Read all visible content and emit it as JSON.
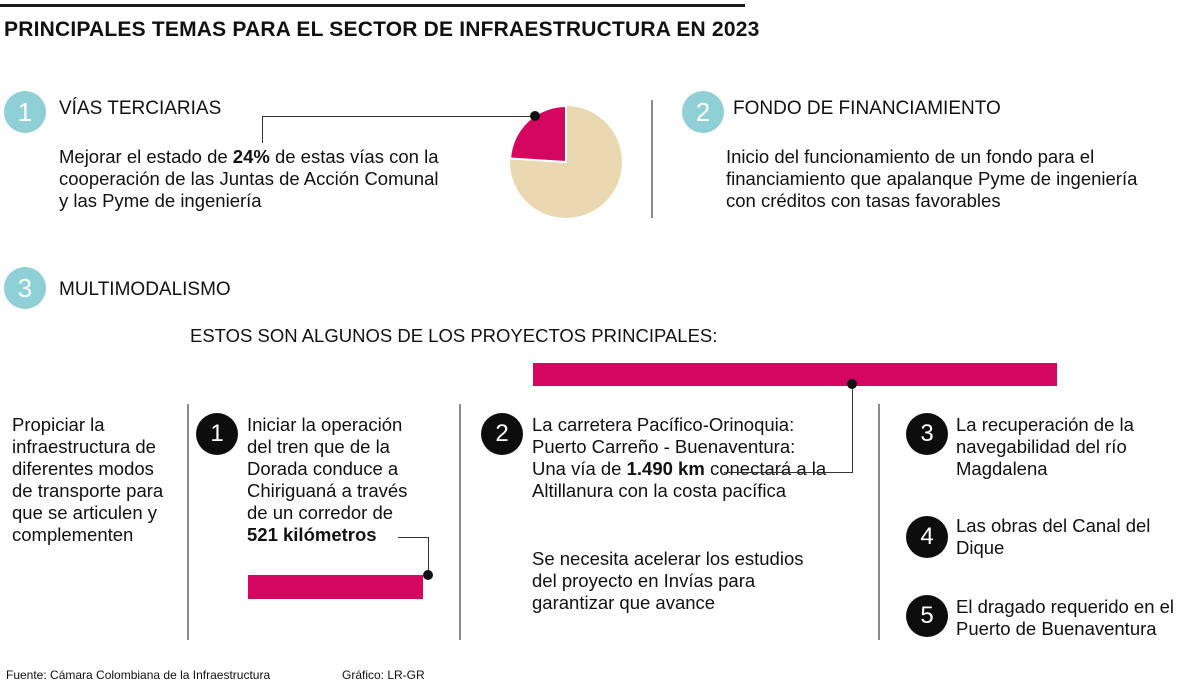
{
  "title": "PRINCIPALES TEMAS PARA EL SECTOR DE INFRAESTRUCTURA EN 2023",
  "colors": {
    "accent": "#d4065f",
    "teal": "#8ed0d6",
    "pie_base": "#ead8b0"
  },
  "section1": {
    "number": "1",
    "heading": "VÍAS TERCIARIAS",
    "text_before": "Mejorar el estado de",
    "highlight": "24%",
    "text_after": "de estas vías con la cooperación de las Juntas de Acción Comunal y las Pyme de ingeniería",
    "pie_share": 0.24
  },
  "section2": {
    "number": "2",
    "heading": "FONDO  DE FINANCIAMIENTO",
    "text": "Inicio del funcionamiento de un fondo para el financiamiento que apalanque Pyme de ingeniería con créditos con tasas favorables"
  },
  "section3": {
    "number": "3",
    "heading": "MULTIMODALISMO",
    "subheading": "ESTOS SON ALGUNOS DE LOS PROYECTOS PRINCIPALES:",
    "intro": "Propiciar la infraestructura de diferentes modos de transporte para que se articulen y complementen",
    "projects": [
      {
        "number": "1",
        "text": "Iniciar la operación del tren que de la Dorada conduce a Chiriguaná a través de un corredor de",
        "highlight": "521 kilómetros",
        "length_km": 521
      },
      {
        "number": "2",
        "text_before": "La carretera Pacífico-Orinoquia: Puerto Carreño - Buenaventura: Una vía de",
        "highlight": "1.490 km",
        "text_after": "conectará a la Altillanura con la costa pacífica",
        "note": "Se  necesita acelerar los estudios del proyecto en Invías para garantizar que avance",
        "length_km": 1490
      },
      {
        "number": "3",
        "text": "La recuperación de la navegabilidad del río Magdalena"
      },
      {
        "number": "4",
        "text": "Las obras del Canal del Dique"
      },
      {
        "number": "5",
        "text": "El dragado requerido en el Puerto de Buenaventura"
      }
    ]
  },
  "footer": {
    "source": "Fuente: Cámara Colombiana de la Infraestructura",
    "credit": "Gráfico: LR-GR"
  }
}
